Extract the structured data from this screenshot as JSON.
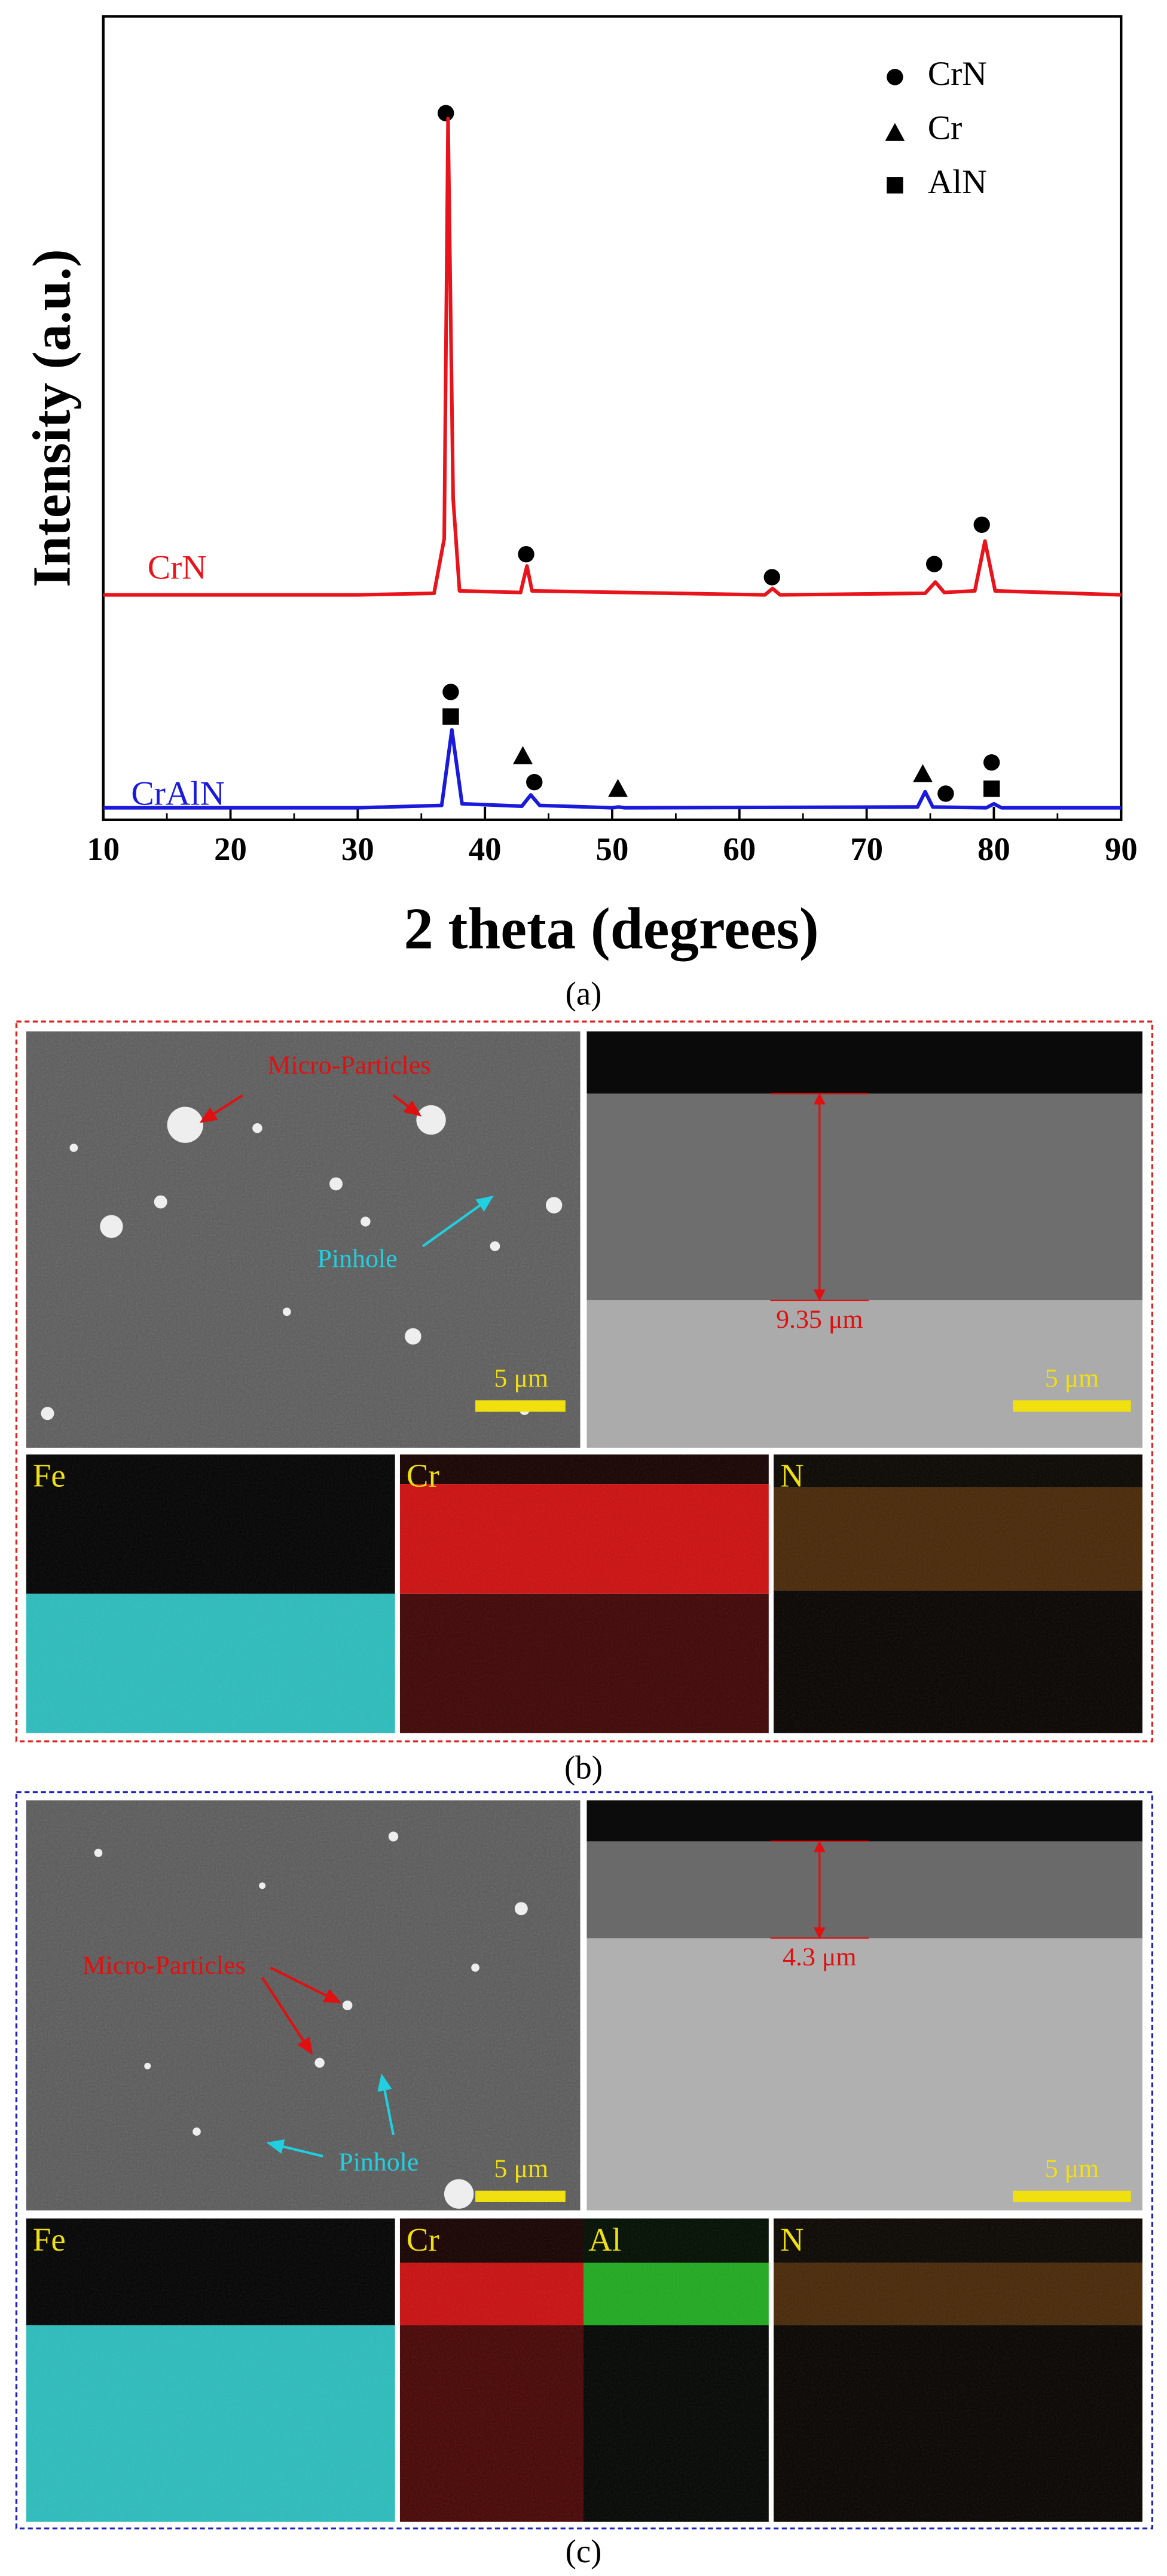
{
  "chart_data": {
    "type": "line",
    "x_label": "2 theta (degrees)",
    "y_label": "Intensity (a.u.)",
    "xlim": [
      10,
      90
    ],
    "xticks": [
      10,
      20,
      30,
      40,
      50,
      60,
      70,
      80,
      90
    ],
    "ylim": [
      0,
      100
    ],
    "legend": [
      "CrN",
      "Cr",
      "AlN"
    ],
    "series": [
      {
        "name": "CrN",
        "color": "#e8141c",
        "x": [
          10,
          30,
          36,
          36.8,
          37.1,
          37.5,
          38,
          42.8,
          43.3,
          43.7,
          62,
          62.6,
          63.2,
          74.6,
          75.4,
          76.1,
          78.5,
          79.3,
          80.1,
          90
        ],
        "values": [
          28,
          28,
          28.2,
          35,
          87.3,
          40,
          28.5,
          28.3,
          31.6,
          28.5,
          28,
          28.8,
          28,
          28.2,
          29.6,
          28.3,
          28.5,
          34.7,
          28.5,
          28
        ]
      },
      {
        "name": "CrAlN",
        "color": "#1a1adc",
        "x": [
          10,
          30,
          36.6,
          37.4,
          38.2,
          42.9,
          43.6,
          44.3,
          50,
          50.5,
          51,
          74,
          74.6,
          75.2,
          79.4,
          80,
          80.6,
          90
        ],
        "values": [
          1.5,
          1.5,
          1.8,
          11.2,
          2,
          1.7,
          3.1,
          1.8,
          1.5,
          1.6,
          1.5,
          1.6,
          3.5,
          1.6,
          1.5,
          2,
          1.5,
          1.5
        ]
      }
    ]
  },
  "captions": [
    "(a)",
    "(b)",
    "(c)"
  ],
  "panel_b": {
    "surface_labels": [
      "Micro-Particles",
      "Pinhole"
    ],
    "scale_bars": [
      "5 μm",
      "5 μm"
    ],
    "thickness": "9.35 μm",
    "maps": [
      "Fe",
      "Cr",
      "N"
    ]
  },
  "panel_c": {
    "surface_labels": [
      "Micro-Particles",
      "Pinhole"
    ],
    "scale_bars": [
      "5 μm",
      "5 μm"
    ],
    "thickness": "4.3 μm",
    "maps": [
      "Fe",
      "Cr",
      "Al",
      "N"
    ]
  }
}
